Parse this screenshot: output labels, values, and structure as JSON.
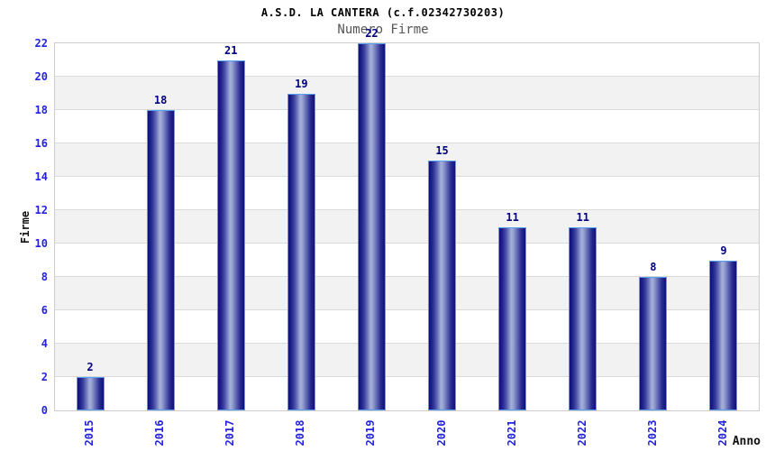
{
  "title": "A.S.D. LA CANTERA (c.f.02342730203)",
  "subtitle": "Numero Firme",
  "chart_data": {
    "type": "bar",
    "categories": [
      "2015",
      "2016",
      "2017",
      "2018",
      "2019",
      "2020",
      "2021",
      "2022",
      "2023",
      "2024"
    ],
    "values": [
      2,
      18,
      21,
      19,
      22,
      15,
      11,
      11,
      8,
      9
    ],
    "title": "A.S.D. LA CANTERA (c.f.02342730203)",
    "subtitle": "Numero Firme",
    "xlabel": "Anno",
    "ylabel": "Firme",
    "ylim": [
      0,
      22
    ],
    "ytick_step": 2,
    "grid": "horizontal lines every 2 units with alternating white/gray bands",
    "legend": "none",
    "bar_labels_shown": true
  },
  "colors": {
    "tick_blue": "#2222dd",
    "value_navy": "#000080",
    "subtitle_gray": "#555555",
    "plot_border": "#cccccc",
    "grid_line": "#d9d9d9",
    "band_gray": "#f2f2f2",
    "band_white": "#ffffff",
    "bar_dark": "#10107a",
    "bar_light": "#a6b0da",
    "bar_border": "#55a0ee"
  }
}
